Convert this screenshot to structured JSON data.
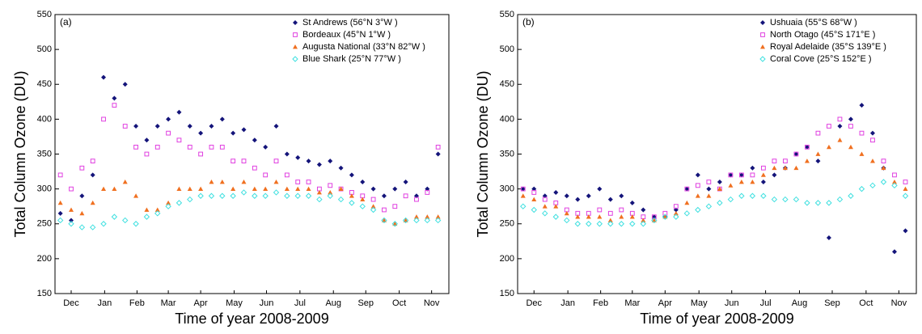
{
  "chart_data": [
    {
      "type": "scatter",
      "title": "(a)",
      "xlabel": "Time of year 2008-2009",
      "ylabel": "Total Column Ozone (DU)",
      "x": [
        5,
        15,
        25,
        35,
        45,
        55,
        65,
        75,
        85,
        95,
        105,
        115,
        125,
        135,
        145,
        155,
        165,
        175,
        185,
        195,
        205,
        215,
        225,
        235,
        245,
        255,
        265,
        275,
        285,
        295,
        305,
        315,
        325,
        335,
        345,
        355
      ],
      "xlim": [
        0,
        365
      ],
      "xticks": [
        {
          "value": 15,
          "label": "Dec"
        },
        {
          "value": 46,
          "label": "Jan"
        },
        {
          "value": 76,
          "label": "Feb"
        },
        {
          "value": 105,
          "label": "Mar"
        },
        {
          "value": 135,
          "label": "Apr"
        },
        {
          "value": 166,
          "label": "May"
        },
        {
          "value": 196,
          "label": "Jun"
        },
        {
          "value": 227,
          "label": "Jul"
        },
        {
          "value": 258,
          "label": "Aug"
        },
        {
          "value": 288,
          "label": "Sep"
        },
        {
          "value": 319,
          "label": "Oct"
        },
        {
          "value": 349,
          "label": "Nov"
        }
      ],
      "ylim": [
        150,
        550
      ],
      "yticks": [
        150,
        200,
        250,
        300,
        350,
        400,
        450,
        500,
        550
      ],
      "series": [
        {
          "name": "St Andrews (56°N 3°W )",
          "color": "#14147a",
          "marker": "diamond",
          "values": [
            265,
            255,
            290,
            320,
            460,
            430,
            450,
            390,
            370,
            390,
            400,
            410,
            390,
            380,
            390,
            400,
            380,
            385,
            370,
            360,
            390,
            350,
            345,
            340,
            335,
            340,
            330,
            320,
            310,
            300,
            290,
            300,
            310,
            290,
            300,
            350
          ]
        },
        {
          "name": "Bordeaux  (45°N 1°W )",
          "color": "#e040e0",
          "marker": "square-open",
          "values": [
            320,
            300,
            330,
            340,
            400,
            420,
            390,
            360,
            350,
            360,
            380,
            370,
            360,
            350,
            360,
            360,
            340,
            340,
            330,
            320,
            340,
            320,
            310,
            310,
            300,
            305,
            300,
            295,
            290,
            285,
            270,
            275,
            290,
            285,
            295,
            360
          ]
        },
        {
          "name": "Augusta National  (33°N 82°W )",
          "color": "#f07020",
          "marker": "triangle",
          "values": [
            280,
            270,
            265,
            280,
            300,
            300,
            310,
            290,
            270,
            270,
            280,
            300,
            300,
            300,
            310,
            310,
            300,
            310,
            300,
            300,
            310,
            300,
            300,
            300,
            295,
            295,
            300,
            290,
            285,
            275,
            255,
            250,
            255,
            260,
            260,
            260
          ]
        },
        {
          "name": "Blue Shark  (25°N 77°W )",
          "color": "#40e0e0",
          "marker": "diamond-open",
          "values": [
            255,
            250,
            245,
            245,
            250,
            260,
            255,
            250,
            260,
            265,
            275,
            280,
            285,
            290,
            290,
            290,
            290,
            295,
            290,
            290,
            295,
            290,
            290,
            290,
            285,
            290,
            285,
            280,
            275,
            270,
            255,
            250,
            255,
            255,
            255,
            255
          ]
        }
      ]
    },
    {
      "type": "scatter",
      "title": "(b)",
      "xlabel": "Time of year 2008-2009",
      "ylabel": "Total Column Ozone (DU)",
      "x": [
        5,
        15,
        25,
        35,
        45,
        55,
        65,
        75,
        85,
        95,
        105,
        115,
        125,
        135,
        145,
        155,
        165,
        175,
        185,
        195,
        205,
        215,
        225,
        235,
        245,
        255,
        265,
        275,
        285,
        295,
        305,
        315,
        325,
        335,
        345,
        355
      ],
      "xlim": [
        0,
        365
      ],
      "xticks": [
        {
          "value": 15,
          "label": "Dec"
        },
        {
          "value": 46,
          "label": "Jan"
        },
        {
          "value": 76,
          "label": "Feb"
        },
        {
          "value": 105,
          "label": "Mar"
        },
        {
          "value": 135,
          "label": "Apr"
        },
        {
          "value": 166,
          "label": "May"
        },
        {
          "value": 196,
          "label": "Jun"
        },
        {
          "value": 227,
          "label": "Jul"
        },
        {
          "value": 258,
          "label": "Aug"
        },
        {
          "value": 288,
          "label": "Sep"
        },
        {
          "value": 319,
          "label": "Oct"
        },
        {
          "value": 349,
          "label": "Nov"
        }
      ],
      "ylim": [
        150,
        550
      ],
      "yticks": [
        150,
        200,
        250,
        300,
        350,
        400,
        450,
        500,
        550
      ],
      "series": [
        {
          "name": "Ushuaia  (55°S 68°W )",
          "color": "#14147a",
          "marker": "diamond",
          "values": [
            300,
            300,
            290,
            295,
            290,
            285,
            290,
            300,
            285,
            290,
            280,
            270,
            260,
            260,
            270,
            300,
            320,
            300,
            310,
            320,
            320,
            330,
            310,
            320,
            330,
            350,
            360,
            340,
            230,
            390,
            400,
            420,
            380,
            330,
            210,
            240
          ]
        },
        {
          "name": "North Otago  (45°S 171°E )",
          "color": "#e040e0",
          "marker": "square-open",
          "values": [
            300,
            295,
            285,
            280,
            270,
            265,
            265,
            270,
            265,
            270,
            265,
            260,
            260,
            265,
            275,
            300,
            305,
            310,
            300,
            320,
            320,
            320,
            330,
            340,
            340,
            350,
            360,
            380,
            390,
            400,
            390,
            380,
            370,
            340,
            320,
            310
          ]
        },
        {
          "name": "Royal Adelaide  (35°S 139°E )",
          "color": "#f07020",
          "marker": "triangle",
          "values": [
            290,
            285,
            275,
            275,
            265,
            260,
            260,
            260,
            255,
            260,
            260,
            255,
            255,
            260,
            265,
            280,
            290,
            290,
            300,
            305,
            310,
            310,
            320,
            330,
            330,
            330,
            340,
            350,
            360,
            370,
            360,
            350,
            340,
            330,
            310,
            300
          ]
        },
        {
          "name": "Coral Cove  (25°S 152°E )",
          "color": "#40e0e0",
          "marker": "diamond-open",
          "values": [
            275,
            270,
            265,
            260,
            255,
            250,
            250,
            250,
            250,
            250,
            250,
            250,
            255,
            260,
            260,
            265,
            270,
            275,
            280,
            285,
            290,
            290,
            290,
            285,
            285,
            285,
            280,
            280,
            280,
            285,
            290,
            300,
            305,
            310,
            305,
            290
          ]
        }
      ]
    }
  ]
}
